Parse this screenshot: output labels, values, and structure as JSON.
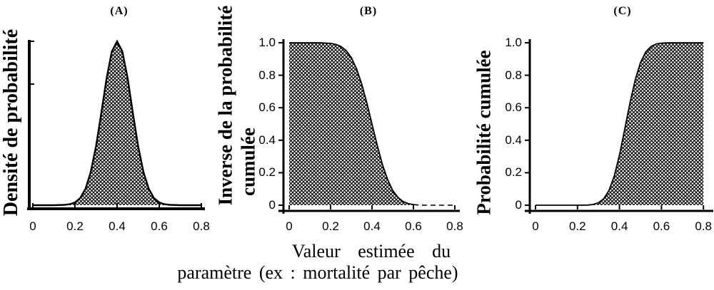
{
  "colors": {
    "background": "#ffffff",
    "ink": "#000000"
  },
  "xlabel": {
    "line1": "Valeur estimée du",
    "line2": "paramètre (ex : mortalité par pêche)"
  },
  "chart_data": [
    {
      "type": "area",
      "panel": "A",
      "title": "(A)",
      "ylabel": "Densité de probabilité",
      "ylabel_lines": [
        "Densité de probabilité"
      ],
      "xlim": [
        0,
        0.8
      ],
      "ylim": [
        0,
        1
      ],
      "x_tick_values": [
        0,
        0.2,
        0.4,
        0.6,
        0.8
      ],
      "x_tick_labels": [
        "0",
        "0.2",
        "0.4",
        "0.6",
        "0.8"
      ],
      "y_tick_values": [],
      "y_tick_labels": [],
      "curve_desc": "normal probability density, mode 0.4, sd ~0.07, peak normalized to 1, filled with dark halftone stipple",
      "x": [
        0,
        0.05,
        0.1,
        0.15,
        0.175,
        0.2,
        0.225,
        0.25,
        0.275,
        0.3,
        0.325,
        0.35,
        0.375,
        0.4,
        0.425,
        0.45,
        0.475,
        0.5,
        0.525,
        0.55,
        0.575,
        0.6,
        0.625,
        0.65,
        0.7,
        0.75,
        0.8
      ],
      "y": [
        0,
        0,
        0,
        0.002,
        0.006,
        0.017,
        0.044,
        0.101,
        0.203,
        0.36,
        0.563,
        0.775,
        0.938,
        1,
        0.938,
        0.775,
        0.563,
        0.36,
        0.203,
        0.101,
        0.044,
        0.017,
        0.006,
        0.002,
        0,
        0,
        0
      ]
    },
    {
      "type": "area",
      "panel": "B",
      "title": "(B)",
      "ylabel": "Inverse de la probabilité cumulée",
      "ylabel_lines": [
        "Inverse de la probabilité",
        "cumulée"
      ],
      "xlim": [
        0,
        0.8
      ],
      "ylim": [
        0,
        1
      ],
      "x_tick_values": [
        0,
        0.2,
        0.4,
        0.6,
        0.8
      ],
      "x_tick_labels": [
        "0",
        "0.2",
        "0.4",
        "0.6",
        "0.8"
      ],
      "y_tick_values": [
        0,
        0.2,
        0.4,
        0.6,
        0.8,
        1
      ],
      "y_tick_labels": [
        "0",
        "0.2",
        "0.4",
        "0.6",
        "0.8",
        "1.0"
      ],
      "curve_desc": "inverse cumulative probability (1 - CDF), midpoint ~0.4, dashed tail near zero after 0.6",
      "tail_dash_from": 0.6,
      "x": [
        0,
        0.05,
        0.1,
        0.15,
        0.2,
        0.225,
        0.25,
        0.275,
        0.3,
        0.325,
        0.35,
        0.375,
        0.4,
        0.425,
        0.45,
        0.475,
        0.5,
        0.525,
        0.55,
        0.575,
        0.6,
        0.625,
        0.65,
        0.7,
        0.75,
        0.8
      ],
      "y": [
        1,
        1,
        1,
        1,
        0.996,
        0.99,
        0.977,
        0.952,
        0.909,
        0.841,
        0.748,
        0.63,
        0.5,
        0.37,
        0.252,
        0.159,
        0.091,
        0.048,
        0.023,
        0.01,
        0.004,
        0.001,
        0,
        0,
        0,
        0
      ]
    },
    {
      "type": "area",
      "panel": "C",
      "title": "(C)",
      "ylabel": "Probabilité cumulée",
      "ylabel_lines": [
        "Probabilité cumulée"
      ],
      "xlim": [
        0,
        0.8
      ],
      "ylim": [
        0,
        1
      ],
      "x_tick_values": [
        0,
        0.2,
        0.4,
        0.6,
        0.8
      ],
      "x_tick_labels": [
        "0",
        "0.2",
        "0.4",
        "0.6",
        "0.8"
      ],
      "y_tick_values": [
        0,
        0.2,
        0.4,
        0.6,
        0.8,
        1
      ],
      "y_tick_labels": [
        "0",
        "0.2",
        "0.4",
        "0.6",
        "0.8",
        "1.0"
      ],
      "curve_desc": "cumulative probability (CDF), midpoint ~0.43, reaches 1.0 by ~0.6 and stays filled to right edge",
      "x": [
        0,
        0.05,
        0.1,
        0.15,
        0.2,
        0.25,
        0.275,
        0.3,
        0.325,
        0.35,
        0.375,
        0.4,
        0.425,
        0.45,
        0.475,
        0.5,
        0.525,
        0.55,
        0.575,
        0.6,
        0.625,
        0.65,
        0.7,
        0.75,
        0.8
      ],
      "y": [
        0,
        0,
        0,
        0,
        0,
        0.001,
        0.005,
        0.015,
        0.04,
        0.091,
        0.18,
        0.309,
        0.467,
        0.63,
        0.773,
        0.878,
        0.943,
        0.977,
        0.992,
        0.998,
        0.999,
        1,
        1,
        1,
        1
      ]
    }
  ]
}
